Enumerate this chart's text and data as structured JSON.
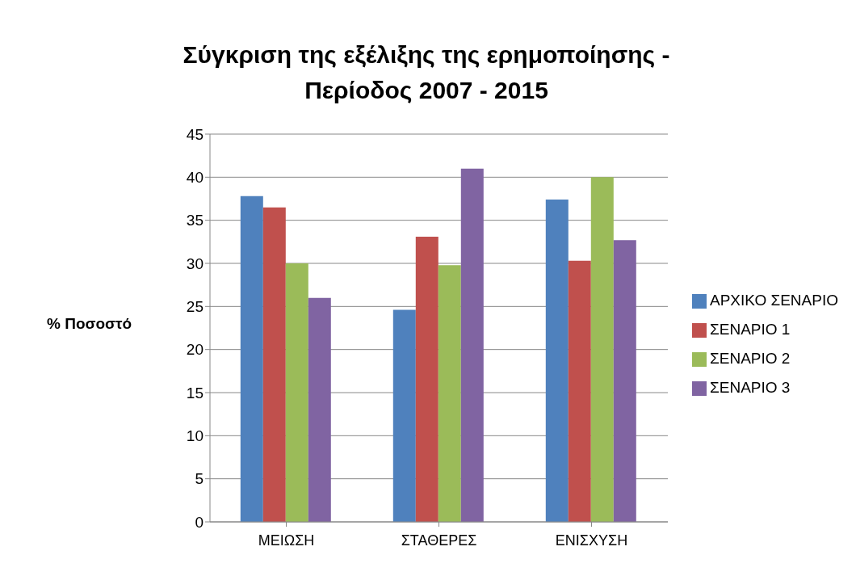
{
  "chart_data": {
    "type": "bar",
    "title": "Σύγκριση της εξέλιξης της ερημοποίησης -\nΠερίοδος 2007 - 2015",
    "ylabel": "% Ποσοστό",
    "categories": [
      "ΜΕΙΩΣΗ",
      "ΣΤΑΘΕΡΕΣ",
      "ΕΝΙΣΧΥΣΗ"
    ],
    "series": [
      {
        "name": "ΑΡΧΙΚΟ ΣΕΝΑΡΙΟ",
        "color": "#4f81bd",
        "values": [
          37.8,
          24.6,
          37.4
        ]
      },
      {
        "name": "ΣΕΝΑΡΙΟ 1",
        "color": "#c0504d",
        "values": [
          36.5,
          33.1,
          30.3
        ]
      },
      {
        "name": "ΣΕΝΑΡΙΟ 2",
        "color": "#9bbb59",
        "values": [
          30.0,
          29.8,
          40.0
        ]
      },
      {
        "name": "ΣΕΝΑΡΙΟ 3",
        "color": "#8064a2",
        "values": [
          26.0,
          41.0,
          32.7
        ]
      }
    ],
    "ylim": [
      0,
      45
    ],
    "yticks": [
      0,
      5,
      10,
      15,
      20,
      25,
      30,
      35,
      40,
      45
    ],
    "grid": "y",
    "legend": "right"
  }
}
